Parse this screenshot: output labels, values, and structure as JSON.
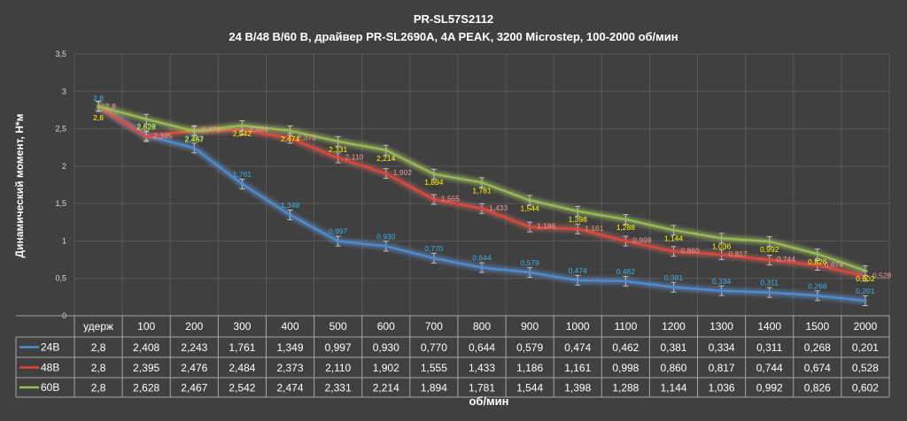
{
  "chart_data": {
    "type": "line",
    "title": "PR-SL57S2112",
    "subtitle": "24 В/48 В/60 В, драйвер PR-SL2690A, 4A PEAK, 3200 Microstep, 100-2000 об/мин",
    "xlabel": "об/мин",
    "ylabel": "Динамический момент, Н*м",
    "ylim": [
      0,
      3.5
    ],
    "yticks": [
      "0",
      "0,5",
      "1",
      "1,5",
      "2",
      "2,5",
      "3",
      "3,5"
    ],
    "grid": true,
    "error_bars": true,
    "legend_placement": "data-table-left",
    "categories": [
      "удерж",
      "100",
      "200",
      "300",
      "400",
      "500",
      "600",
      "700",
      "800",
      "900",
      "1000",
      "1100",
      "1200",
      "1300",
      "1400",
      "1500",
      "2000"
    ],
    "series": [
      {
        "name": "24В",
        "color": "#4a8fd4",
        "label_color": "#3fb2e6",
        "values": [
          2.8,
          2.408,
          2.243,
          1.761,
          1.349,
          0.997,
          0.93,
          0.77,
          0.644,
          0.579,
          0.474,
          0.462,
          0.381,
          0.334,
          0.311,
          0.268,
          0.201
        ],
        "labels": [
          "2,8",
          "2,408",
          "2,243",
          "1,761",
          "1,349",
          "0,997",
          "0,930",
          "0,770",
          "0,644",
          "0,579",
          "0,474",
          "0,462",
          "0,381",
          "0,334",
          "0,311",
          "0,268",
          "0,201"
        ]
      },
      {
        "name": "48В",
        "color": "#e0463c",
        "label_color": "#ef9a94",
        "values": [
          2.8,
          2.395,
          2.476,
          2.484,
          2.373,
          2.11,
          1.902,
          1.555,
          1.433,
          1.186,
          1.161,
          0.998,
          0.86,
          0.817,
          0.744,
          0.674,
          0.528
        ],
        "labels": [
          "2,8",
          "2,395",
          "2,476",
          "2,484",
          "2,373",
          "2,110",
          "1,902",
          "1,555",
          "1,433",
          "1,186",
          "1,161",
          "0,998",
          "0,860",
          "0,817",
          "0,744",
          "0,674",
          "0,528"
        ]
      },
      {
        "name": "60В",
        "color": "#9bbb59",
        "label_color": "#ffff00",
        "values": [
          2.8,
          2.628,
          2.467,
          2.542,
          2.474,
          2.331,
          2.214,
          1.894,
          1.781,
          1.544,
          1.398,
          1.288,
          1.144,
          1.036,
          0.992,
          0.826,
          0.602
        ],
        "labels": [
          "2,8",
          "2,628",
          "2,467",
          "2,542",
          "2,474",
          "2,331",
          "2,214",
          "1,894",
          "1,781",
          "1,544",
          "1,398",
          "1,288",
          "1,144",
          "1,036",
          "0,992",
          "0,826",
          "0,602"
        ]
      }
    ]
  }
}
